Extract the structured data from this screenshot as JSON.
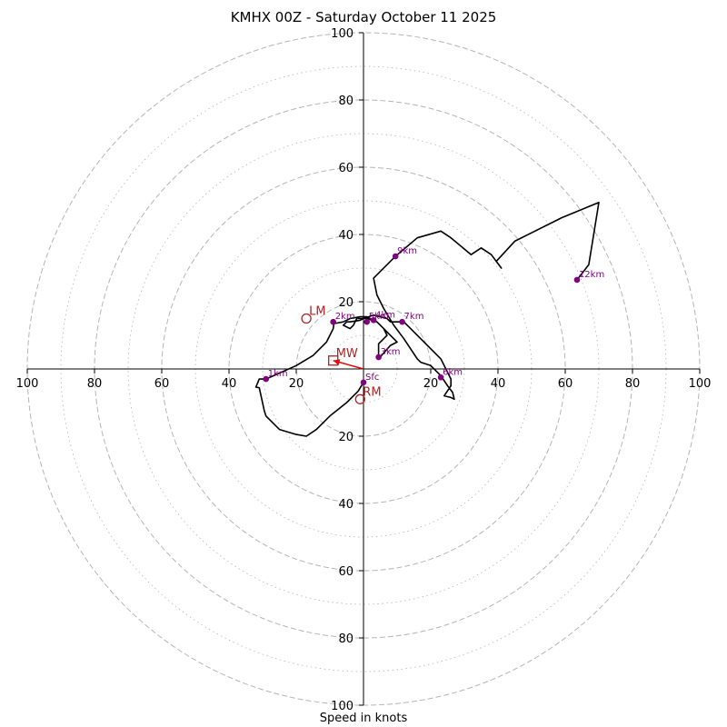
{
  "chart_data": {
    "type": "hodograph",
    "title": "KMHX 00Z - Saturday October 11 2025",
    "xlabel": "Speed in knots",
    "units": "knots",
    "max_speed": 100,
    "dashed_rings": [
      20,
      40,
      60,
      80,
      100
    ],
    "dotted_rings": [
      10,
      30,
      50,
      70,
      90
    ],
    "x_ticks": [
      -100,
      -80,
      -60,
      -40,
      -20,
      20,
      40,
      60,
      80,
      100
    ],
    "x_tick_labels": [
      "100",
      "80",
      "60",
      "40",
      "20",
      "20",
      "40",
      "60",
      "80",
      "100"
    ],
    "y_ticks": [
      100,
      80,
      60,
      40,
      20,
      -20,
      -40,
      -60,
      -80,
      -100
    ],
    "y_tick_labels": [
      "100",
      "80",
      "60",
      "40",
      "20",
      "20",
      "40",
      "60",
      "80",
      "100"
    ],
    "trace": [
      [
        0,
        -4
      ],
      [
        -1.6,
        -6.6
      ],
      [
        -5,
        -10
      ],
      [
        -10,
        -14
      ],
      [
        -14,
        -18
      ],
      [
        -17,
        -20
      ],
      [
        -20,
        -19.5
      ],
      [
        -25,
        -18
      ],
      [
        -29,
        -14
      ],
      [
        -29.5,
        -12.5
      ],
      [
        -31,
        -5.6
      ],
      [
        -32,
        -5.4
      ],
      [
        -31,
        -3
      ],
      [
        -29,
        -3
      ],
      [
        -20,
        1
      ],
      [
        -15,
        4
      ],
      [
        -11,
        8
      ],
      [
        -9,
        12
      ],
      [
        -8.8,
        13.5
      ],
      [
        -6,
        14
      ],
      [
        -4,
        15
      ],
      [
        -1,
        15.5
      ],
      [
        1,
        15.5
      ],
      [
        4,
        14
      ],
      [
        6,
        12
      ],
      [
        7,
        10
      ],
      [
        5,
        8
      ],
      [
        4.5,
        7.5
      ],
      [
        4.5,
        4
      ],
      [
        4.5,
        3
      ],
      [
        8,
        7
      ],
      [
        10,
        8
      ],
      [
        6,
        12
      ],
      [
        4,
        14
      ],
      [
        1,
        15
      ],
      [
        -2,
        15
      ],
      [
        -3,
        13
      ],
      [
        -4,
        12
      ],
      [
        -6,
        13
      ],
      [
        -5,
        14
      ],
      [
        -4,
        14
      ],
      [
        -1,
        14.5
      ],
      [
        0,
        15
      ],
      [
        3,
        16
      ],
      [
        7,
        15
      ],
      [
        8,
        14
      ],
      [
        11.5,
        14
      ],
      [
        12,
        14
      ],
      [
        14,
        12
      ],
      [
        17,
        9
      ],
      [
        20,
        6
      ],
      [
        23,
        3
      ],
      [
        25,
        -1
      ],
      [
        26,
        -3
      ],
      [
        26,
        -5
      ],
      [
        24,
        -8
      ],
      [
        26,
        -8.5
      ],
      [
        27,
        -9
      ],
      [
        26.5,
        -7
      ],
      [
        25,
        -5
      ],
      [
        23,
        -2
      ],
      [
        20,
        1
      ],
      [
        17,
        2
      ],
      [
        16,
        3
      ],
      [
        12,
        9
      ],
      [
        9,
        13
      ],
      [
        6,
        18
      ],
      [
        4,
        22
      ],
      [
        3,
        27
      ],
      [
        9.5,
        33.5
      ],
      [
        16,
        39
      ],
      [
        23,
        41
      ],
      [
        26,
        39
      ],
      [
        32,
        34
      ],
      [
        35,
        36
      ],
      [
        38,
        34
      ],
      [
        41,
        30
      ],
      [
        39.5,
        32
      ],
      [
        45,
        38
      ],
      [
        59,
        45
      ],
      [
        70,
        49.5
      ],
      [
        67,
        31
      ],
      [
        63.5,
        26.5
      ]
    ],
    "height_points": [
      {
        "label": "Sfc",
        "u": 0,
        "v": -4
      },
      {
        "label": "1km",
        "u": -29,
        "v": -3
      },
      {
        "label": "2km",
        "u": -9,
        "v": 14
      },
      {
        "label": "3km",
        "u": 4.5,
        "v": 3.5
      },
      {
        "label": "4km",
        "u": 3,
        "v": 14.5
      },
      {
        "label": "5km",
        "u": 1,
        "v": 14
      },
      {
        "label": "6km",
        "u": 23,
        "v": -2.5
      },
      {
        "label": "7km",
        "u": 11.5,
        "v": 14
      },
      {
        "label": "9km",
        "u": 9.5,
        "v": 33.5
      },
      {
        "label": "12km",
        "u": 63.5,
        "v": 26.5
      }
    ],
    "storm_motion": [
      {
        "label": "LM",
        "marker": "circle",
        "u": -17,
        "v": 15
      },
      {
        "label": "MW",
        "marker": "square",
        "u": -9,
        "v": 2.5
      },
      {
        "label": "RM",
        "marker": "circle",
        "u": -1,
        "v": -9
      }
    ],
    "motion_vector": {
      "from": [
        0,
        0
      ],
      "to": [
        -9,
        2.5
      ]
    },
    "colors": {
      "trace": "#000000",
      "height_points": "#800080",
      "storm_motion": "#b22222",
      "motion_vector": "#ee0000",
      "rings": "#b5b5b5"
    }
  }
}
